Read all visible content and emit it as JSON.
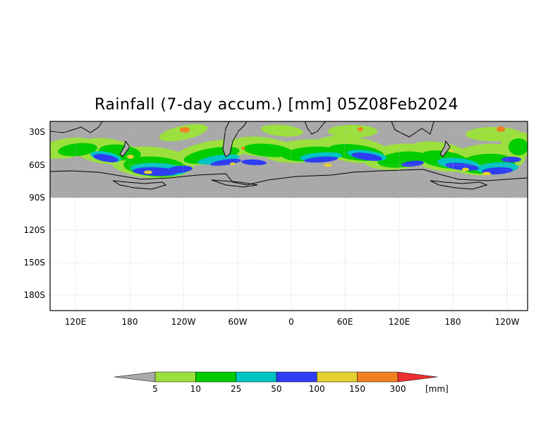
{
  "title": "Rainfall (7-day accum.) [mm] 05Z08Feb2024",
  "map": {
    "lat_labels": [
      "30S",
      "60S",
      "90S",
      "120S",
      "150S",
      "180S"
    ],
    "lon_labels": [
      "120E",
      "180",
      "120W",
      "60W",
      "0",
      "60E",
      "120E",
      "180",
      "120W"
    ],
    "colors": {
      "no_data": "#a9a9a9",
      "land_fill": "#a9a9a9",
      "coast": "#000000",
      "frame": "#000000",
      "grid": "#bbbbbb"
    }
  },
  "legend": {
    "unit": "[mm]",
    "thresholds": [
      "5",
      "10",
      "25",
      "50",
      "100",
      "150",
      "300"
    ],
    "colors": [
      "#a9a9a9",
      "#9be03c",
      "#00cc00",
      "#00c4c4",
      "#2e3df2",
      "#e4d030",
      "#f08020",
      "#ee3030"
    ]
  }
}
